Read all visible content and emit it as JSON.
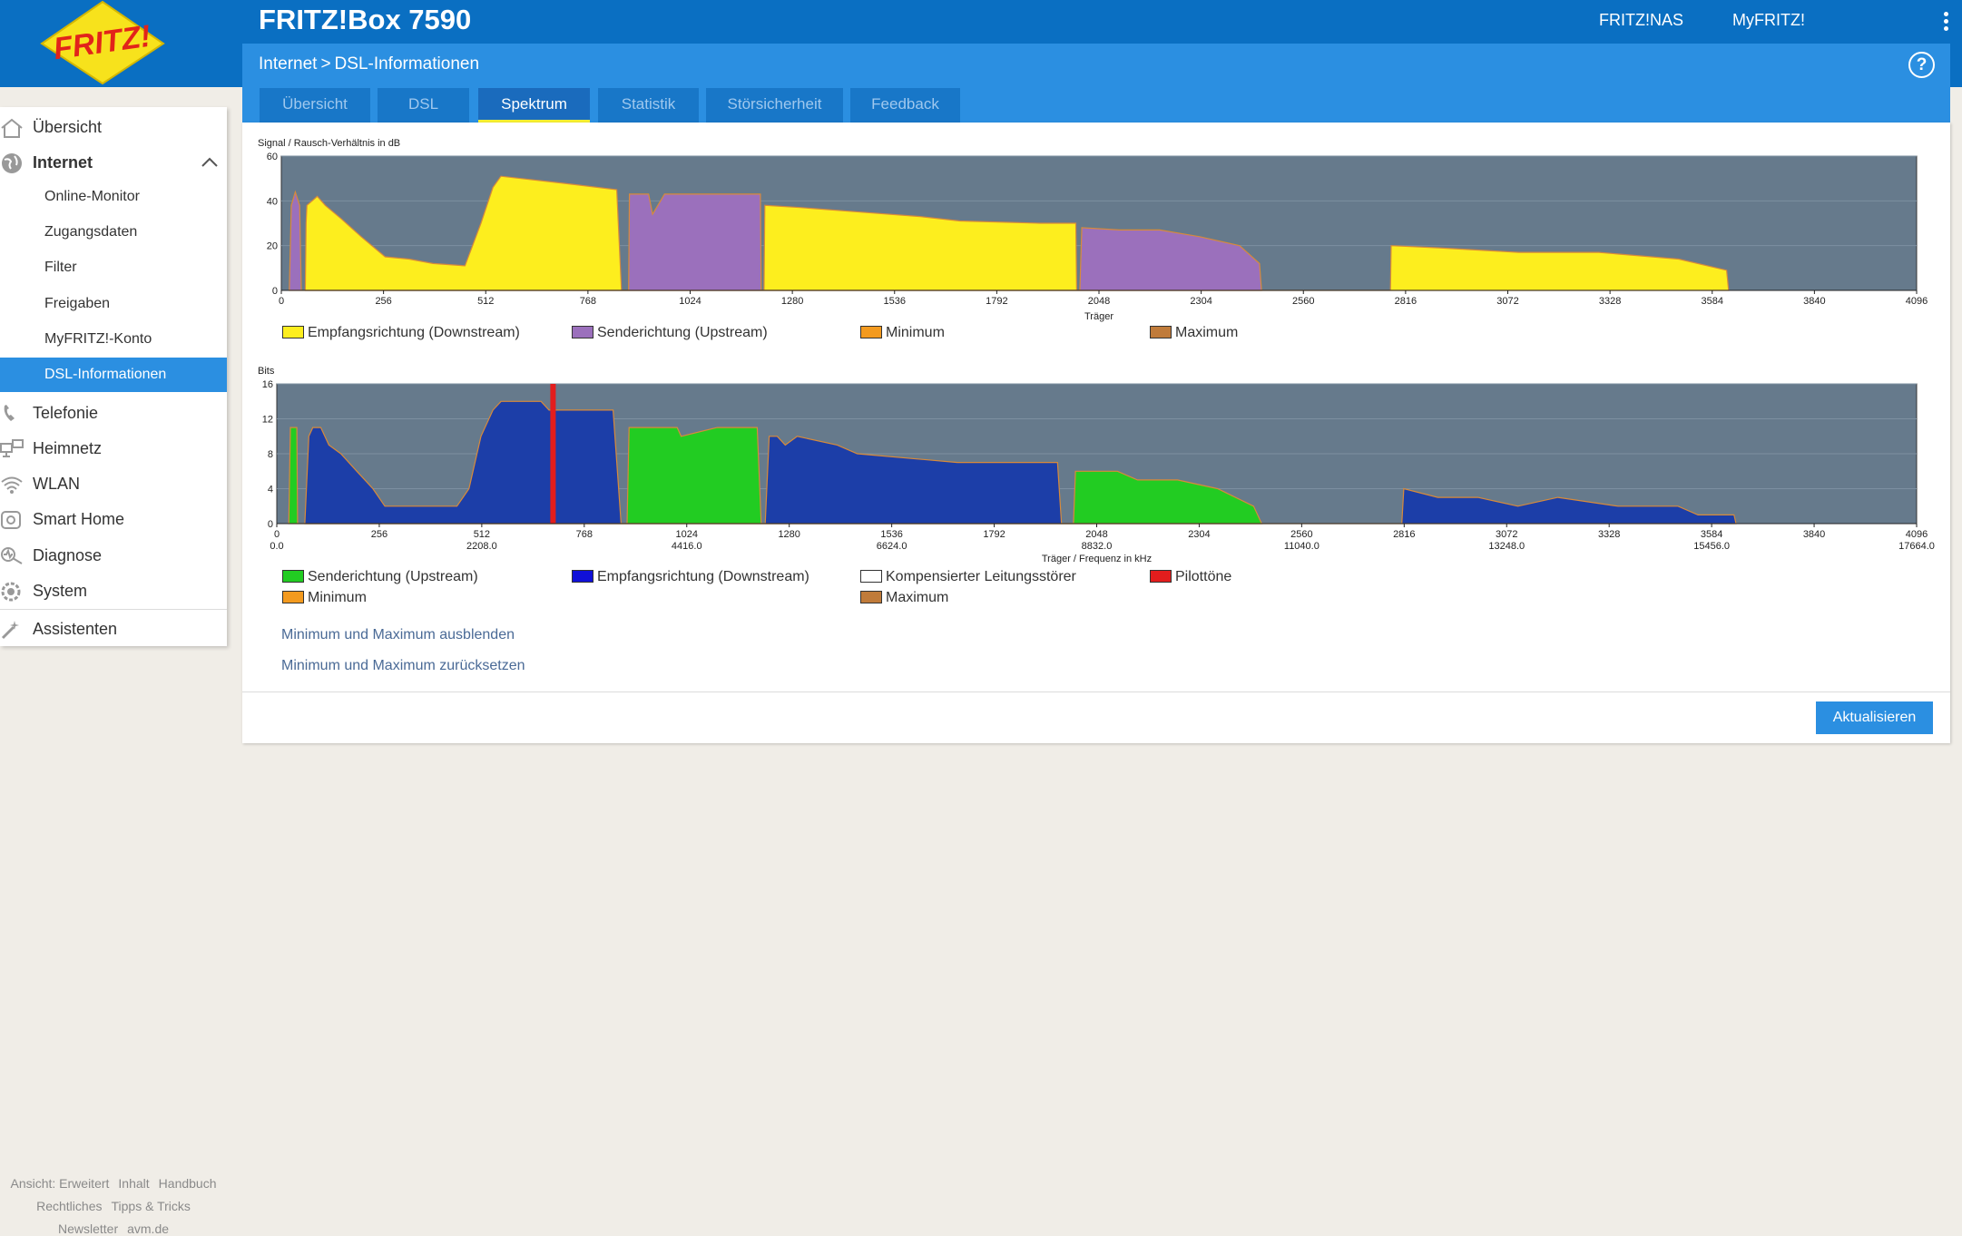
{
  "header": {
    "logo_text": "FRITZ!",
    "product": "FRITZ!Box 7590",
    "links": [
      "FRITZ!NAS",
      "MyFRITZ!"
    ]
  },
  "breadcrumb": {
    "parent": "Internet",
    "separator": ">",
    "current": "DSL-Informationen"
  },
  "tabs": [
    {
      "label": "Übersicht"
    },
    {
      "label": "DSL"
    },
    {
      "label": "Spektrum",
      "active": true
    },
    {
      "label": "Statistik"
    },
    {
      "label": "Störsicherheit"
    },
    {
      "label": "Feedback"
    }
  ],
  "sidebar": {
    "items": [
      {
        "label": "Übersicht",
        "icon": "home-icon"
      },
      {
        "label": "Internet",
        "icon": "globe-icon",
        "expanded": true
      },
      {
        "label": "Online-Monitor"
      },
      {
        "label": "Zugangsdaten"
      },
      {
        "label": "Filter"
      },
      {
        "label": "Freigaben"
      },
      {
        "label": "MyFRITZ!-Konto"
      },
      {
        "label": "DSL-Informationen",
        "active": true
      },
      {
        "label": "Telefonie",
        "icon": "phone-icon"
      },
      {
        "label": "Heimnetz",
        "icon": "network-icon"
      },
      {
        "label": "WLAN",
        "icon": "wifi-icon"
      },
      {
        "label": "Smart Home",
        "icon": "smarthome-icon"
      },
      {
        "label": "Diagnose",
        "icon": "diagnose-icon"
      },
      {
        "label": "System",
        "icon": "system-icon"
      },
      {
        "label": "Assistenten",
        "icon": "wizard-icon"
      }
    ]
  },
  "footer": {
    "row1": [
      "Ansicht: Erweitert",
      "Inhalt",
      "Handbuch"
    ],
    "row2": [
      "Rechtliches",
      "Tipps & Tricks"
    ],
    "row3": [
      "Newsletter",
      "avm.de"
    ]
  },
  "colors": {
    "header_blue": "#0a6fc2",
    "accent_blue": "#2b8fe1",
    "plot_bg": "#667a8c",
    "downstream_yellow": "#fdee1e",
    "upstream_purple": "#9b70bc",
    "minimum": "#f39a1f",
    "maximum": "#c07b3a",
    "bits_green": "#22cc22",
    "bits_blue": "#1c3ea8",
    "pilot_red": "#e31d1d"
  },
  "chart_data": [
    {
      "type": "area",
      "ylabel": "Signal / Rausch-Verhältnis in dB",
      "xlabel": "Träger",
      "xlim": [
        0,
        4096
      ],
      "ylim": [
        0,
        60
      ],
      "xticks": [
        0,
        256,
        512,
        768,
        1024,
        1280,
        1536,
        1792,
        2048,
        2304,
        2560,
        2816,
        3072,
        3328,
        3584,
        3840,
        4096
      ],
      "yticks": [
        0,
        20,
        40,
        60
      ],
      "legend": [
        "Empfangsrichtung (Downstream)",
        "Senderichtung (Upstream)",
        "Minimum",
        "Maximum"
      ],
      "series": [
        {
          "name": "Empfangsrichtung (Downstream)",
          "color": "#fdee1e",
          "points": [
            [
              60,
              0
            ],
            [
              62,
              30
            ],
            [
              64,
              38
            ],
            [
              90,
              42
            ],
            [
              110,
              38
            ],
            [
              150,
              32
            ],
            [
              200,
              24
            ],
            [
              260,
              15
            ],
            [
              320,
              14
            ],
            [
              380,
              12
            ],
            [
              460,
              11
            ],
            [
              500,
              30
            ],
            [
              530,
              46
            ],
            [
              550,
              51
            ],
            [
              600,
              50
            ],
            [
              700,
              48
            ],
            [
              840,
              45
            ],
            [
              852,
              0
            ],
            [
              1209,
              0
            ],
            [
              1211,
              38
            ],
            [
              1300,
              37
            ],
            [
              1450,
              35
            ],
            [
              1600,
              33
            ],
            [
              1700,
              31
            ],
            [
              1900,
              30
            ],
            [
              1990,
              30
            ],
            [
              1992,
              0
            ],
            [
              2778,
              0
            ],
            [
              2780,
              20
            ],
            [
              2900,
              19
            ],
            [
              3100,
              17
            ],
            [
              3300,
              17
            ],
            [
              3500,
              14
            ],
            [
              3620,
              9
            ],
            [
              3625,
              0
            ]
          ]
        },
        {
          "name": "Senderichtung (Upstream)",
          "color": "#9b70bc",
          "points": [
            [
              20,
              0
            ],
            [
              25,
              38
            ],
            [
              35,
              44
            ],
            [
              46,
              38
            ],
            [
              50,
              0
            ],
            [
              870,
              0
            ],
            [
              872,
              43
            ],
            [
              920,
              43
            ],
            [
              930,
              34
            ],
            [
              960,
              43
            ],
            [
              1100,
              43
            ],
            [
              1200,
              43
            ],
            [
              1202,
              0
            ],
            [
              2000,
              0
            ],
            [
              2005,
              28
            ],
            [
              2100,
              27
            ],
            [
              2200,
              27
            ],
            [
              2300,
              24
            ],
            [
              2400,
              20
            ],
            [
              2450,
              12
            ],
            [
              2455,
              0
            ]
          ]
        }
      ]
    },
    {
      "type": "area",
      "ylabel": "Bits",
      "xlabel": "Träger / Frequenz in kHz",
      "xlim": [
        0,
        4096
      ],
      "ylim": [
        0,
        16
      ],
      "xticks": [
        0,
        256,
        512,
        768,
        1024,
        1280,
        1536,
        1792,
        2048,
        2304,
        2560,
        2816,
        3072,
        3328,
        3584,
        3840,
        4096
      ],
      "freq_labels": [
        "0.0",
        "2208.0",
        "4416.0",
        "6624.0",
        "8832.0",
        "11040.0",
        "13248.0",
        "15456.0",
        "17664.0"
      ],
      "yticks": [
        0,
        4,
        8,
        12,
        16
      ],
      "legend": [
        "Senderichtung (Upstream)",
        "Empfangsrichtung (Downstream)",
        "Kompensierter Leitungsstörer",
        "Pilottöne",
        "Minimum",
        "Maximum"
      ],
      "series": [
        {
          "name": "Senderichtung (Upstream)",
          "color": "#22cc22",
          "points": [
            [
              30,
              0
            ],
            [
              34,
              11
            ],
            [
              50,
              11
            ],
            [
              52,
              0
            ],
            [
              875,
              0
            ],
            [
              880,
              11
            ],
            [
              1000,
              11
            ],
            [
              1010,
              10
            ],
            [
              1100,
              11
            ],
            [
              1200,
              11
            ],
            [
              1210,
              0
            ],
            [
              1990,
              0
            ],
            [
              1995,
              6
            ],
            [
              2100,
              6
            ],
            [
              2150,
              5
            ],
            [
              2250,
              5
            ],
            [
              2350,
              4
            ],
            [
              2440,
              2
            ],
            [
              2460,
              0
            ]
          ]
        },
        {
          "name": "Empfangsrichtung (Downstream)",
          "color": "#1c3ea8",
          "points": [
            [
              70,
              0
            ],
            [
              80,
              10
            ],
            [
              90,
              11
            ],
            [
              110,
              11
            ],
            [
              130,
              9
            ],
            [
              160,
              8
            ],
            [
              200,
              6
            ],
            [
              240,
              4
            ],
            [
              270,
              2
            ],
            [
              450,
              2
            ],
            [
              480,
              4
            ],
            [
              510,
              10
            ],
            [
              540,
              13
            ],
            [
              560,
              14
            ],
            [
              660,
              14
            ],
            [
              680,
              13
            ],
            [
              760,
              13
            ],
            [
              840,
              13
            ],
            [
              860,
              0
            ],
            [
              1220,
              0
            ],
            [
              1230,
              10
            ],
            [
              1250,
              10
            ],
            [
              1270,
              9
            ],
            [
              1300,
              10
            ],
            [
              1400,
              9
            ],
            [
              1450,
              8
            ],
            [
              1700,
              7
            ],
            [
              1950,
              7
            ],
            [
              1960,
              0
            ],
            [
              2810,
              0
            ],
            [
              2815,
              4
            ],
            [
              2900,
              3
            ],
            [
              3000,
              3
            ],
            [
              3100,
              2
            ],
            [
              3200,
              3
            ],
            [
              3350,
              2
            ],
            [
              3500,
              2
            ],
            [
              3550,
              1
            ],
            [
              3640,
              1
            ],
            [
              3645,
              0
            ]
          ]
        },
        {
          "name": "Pilottöne",
          "color": "#e31d1d",
          "x": 690
        }
      ]
    }
  ],
  "labels": {
    "hide_minmax": "Minimum und Maximum ausblenden",
    "reset_minmax": "Minimum und Maximum zurücksetzen",
    "refresh_button": "Aktualisieren"
  }
}
